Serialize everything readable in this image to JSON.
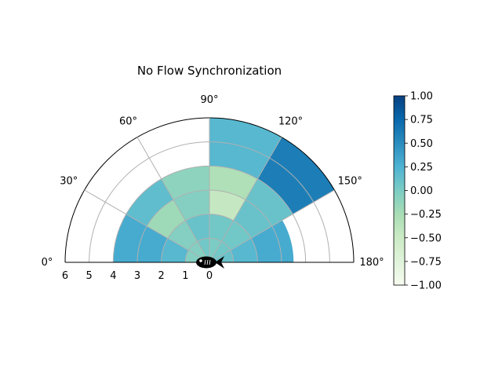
{
  "chart_data": {
    "type": "heatmap",
    "subtype": "polar-half",
    "title": "No Flow Synchronization",
    "angle_ticks": [
      "0°",
      "30°",
      "60°",
      "90°",
      "120°",
      "150°",
      "180°"
    ],
    "radius_ticks": [
      "6",
      "5",
      "4",
      "3",
      "2",
      "1",
      "0"
    ],
    "radius_range": [
      0,
      6
    ],
    "angle_range_deg": [
      0,
      180
    ],
    "grid": true,
    "center_icon": "fish-icon",
    "sectors": [
      {
        "theta": [
          0,
          30
        ],
        "r": [
          0,
          1
        ],
        "value": -0.05
      },
      {
        "theta": [
          0,
          30
        ],
        "r": [
          1,
          2
        ],
        "value": 0.2
      },
      {
        "theta": [
          0,
          30
        ],
        "r": [
          2,
          3
        ],
        "value": 0.3
      },
      {
        "theta": [
          0,
          30
        ],
        "r": [
          3,
          4
        ],
        "value": 0.3
      },
      {
        "theta": [
          30,
          60
        ],
        "r": [
          0,
          1
        ],
        "value": -0.05
      },
      {
        "theta": [
          30,
          60
        ],
        "r": [
          1,
          2
        ],
        "value": -0.05
      },
      {
        "theta": [
          30,
          60
        ],
        "r": [
          2,
          3
        ],
        "value": -0.2
      },
      {
        "theta": [
          30,
          60
        ],
        "r": [
          3,
          4
        ],
        "value": 0.15
      },
      {
        "theta": [
          60,
          90
        ],
        "r": [
          0,
          1
        ],
        "value": 0.05
      },
      {
        "theta": [
          60,
          90
        ],
        "r": [
          1,
          2
        ],
        "value": 0.1
      },
      {
        "theta": [
          60,
          90
        ],
        "r": [
          2,
          3
        ],
        "value": -0.05
      },
      {
        "theta": [
          60,
          90
        ],
        "r": [
          3,
          4
        ],
        "value": -0.1
      },
      {
        "theta": [
          90,
          120
        ],
        "r": [
          0,
          1
        ],
        "value": 0.0
      },
      {
        "theta": [
          90,
          120
        ],
        "r": [
          1,
          2
        ],
        "value": 0.05
      },
      {
        "theta": [
          90,
          120
        ],
        "r": [
          2,
          3
        ],
        "value": -0.45
      },
      {
        "theta": [
          90,
          120
        ],
        "r": [
          3,
          4
        ],
        "value": -0.3
      },
      {
        "theta": [
          90,
          120
        ],
        "r": [
          4,
          6
        ],
        "value": 0.2
      },
      {
        "theta": [
          120,
          150
        ],
        "r": [
          0,
          1
        ],
        "value": 0.05
      },
      {
        "theta": [
          120,
          150
        ],
        "r": [
          1,
          2
        ],
        "value": 0.05
      },
      {
        "theta": [
          120,
          150
        ],
        "r": [
          2,
          3
        ],
        "value": 0.1
      },
      {
        "theta": [
          120,
          150
        ],
        "r": [
          3,
          4
        ],
        "value": 0.1
      },
      {
        "theta": [
          120,
          150
        ],
        "r": [
          4,
          6
        ],
        "value": 0.6
      },
      {
        "theta": [
          150,
          180
        ],
        "r": [
          0,
          1
        ],
        "value": 0.1
      },
      {
        "theta": [
          150,
          180
        ],
        "r": [
          1,
          2
        ],
        "value": 0.2
      },
      {
        "theta": [
          150,
          180
        ],
        "r": [
          2,
          3
        ],
        "value": 0.3
      },
      {
        "theta": [
          150,
          180
        ],
        "r": [
          3,
          3.5
        ],
        "value": 0.3
      }
    ],
    "colorbar": {
      "colormap": "GnBu",
      "range": [
        -1,
        1
      ],
      "ticks": [
        "1.00",
        "0.75",
        "0.50",
        "0.25",
        "0.00",
        "−0.25",
        "−0.50",
        "−0.75",
        "−1.00"
      ]
    }
  }
}
